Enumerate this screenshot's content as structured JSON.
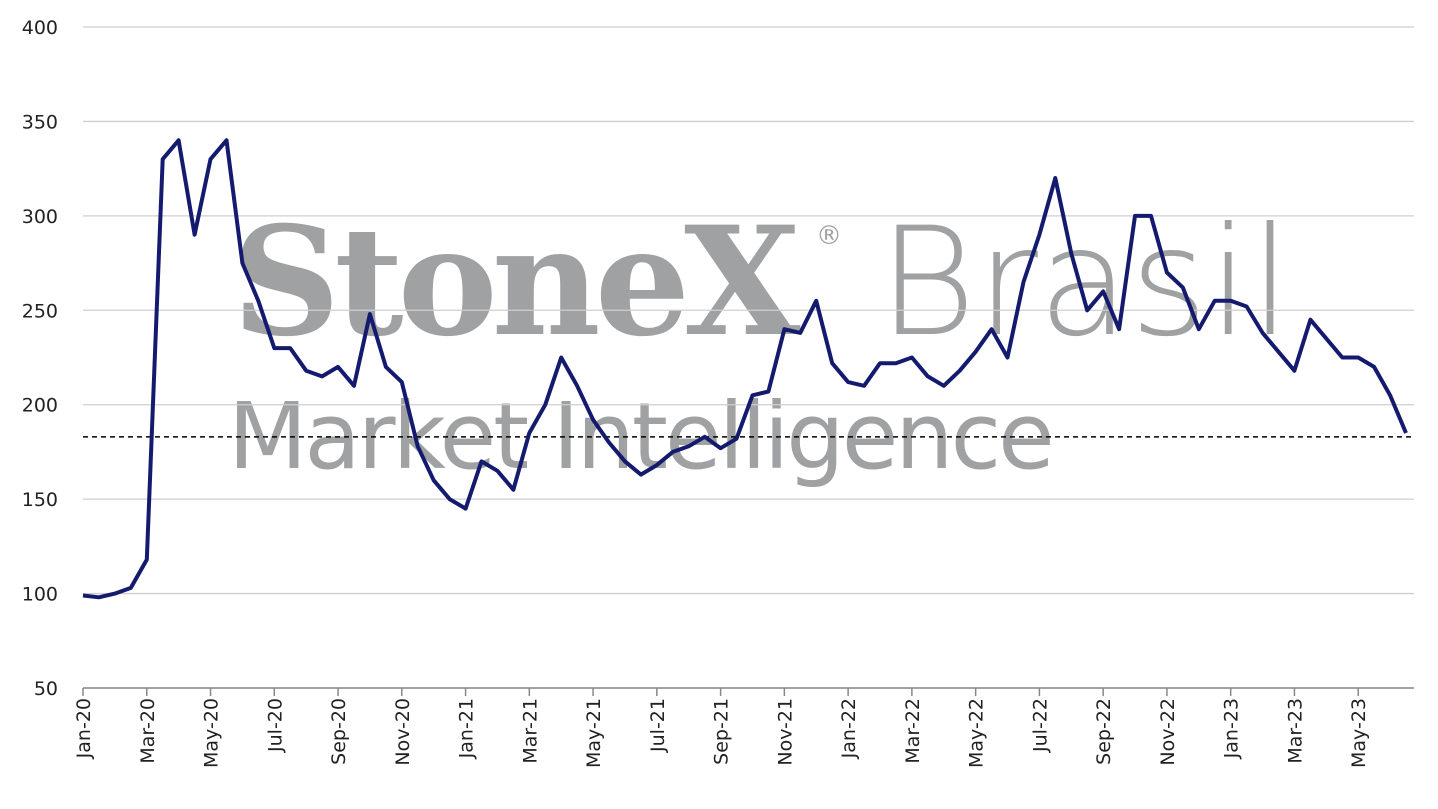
{
  "chart_data": {
    "type": "line",
    "watermark": {
      "brand": "StoneX",
      "mark": "®",
      "region": "Brasil",
      "subtitle": "Market Intelligence"
    },
    "categories": [
      "Jan-20",
      null,
      null,
      null,
      "Mar-20",
      null,
      null,
      null,
      "May-20",
      null,
      null,
      null,
      "Jul-20",
      null,
      null,
      null,
      "Sep-20",
      null,
      null,
      null,
      "Nov-20",
      null,
      null,
      null,
      "Jan-21",
      null,
      null,
      null,
      "Mar-21",
      null,
      null,
      null,
      "May-21",
      null,
      null,
      null,
      "Jul-21",
      null,
      null,
      null,
      "Sep-21",
      null,
      null,
      null,
      "Nov-21",
      null,
      null,
      null,
      "Jan-22",
      null,
      null,
      null,
      "Mar-22",
      null,
      null,
      null,
      "May-22",
      null,
      null,
      null,
      "Jul-22",
      null,
      null,
      null,
      "Sep-22",
      null,
      null,
      null,
      "Nov-22",
      null,
      null,
      null,
      "Jan-23",
      null,
      null,
      null,
      "Mar-23",
      null,
      null,
      null,
      "May-23",
      null,
      null,
      null
    ],
    "series": [
      {
        "color": "#141b6e",
        "values": [
          99,
          98,
          100,
          103,
          118,
          330,
          340,
          290,
          330,
          340,
          275,
          255,
          230,
          230,
          218,
          215,
          220,
          210,
          248,
          220,
          212,
          178,
          160,
          150,
          145,
          170,
          165,
          155,
          185,
          200,
          225,
          210,
          192,
          180,
          170,
          163,
          168,
          175,
          178,
          183,
          177,
          182,
          205,
          207,
          240,
          238,
          255,
          222,
          212,
          210,
          222,
          222,
          225,
          215,
          210,
          218,
          228,
          240,
          225,
          265,
          290,
          320,
          280,
          250,
          260,
          240,
          300,
          300,
          270,
          262,
          240,
          255,
          255,
          252,
          238,
          228,
          218,
          245,
          235,
          225,
          225,
          220,
          205,
          185
        ]
      }
    ],
    "reference_line": 183,
    "ylim": [
      50,
      400
    ],
    "yticks": [
      50,
      100,
      150,
      200,
      250,
      300,
      350,
      400
    ],
    "grid": true
  }
}
